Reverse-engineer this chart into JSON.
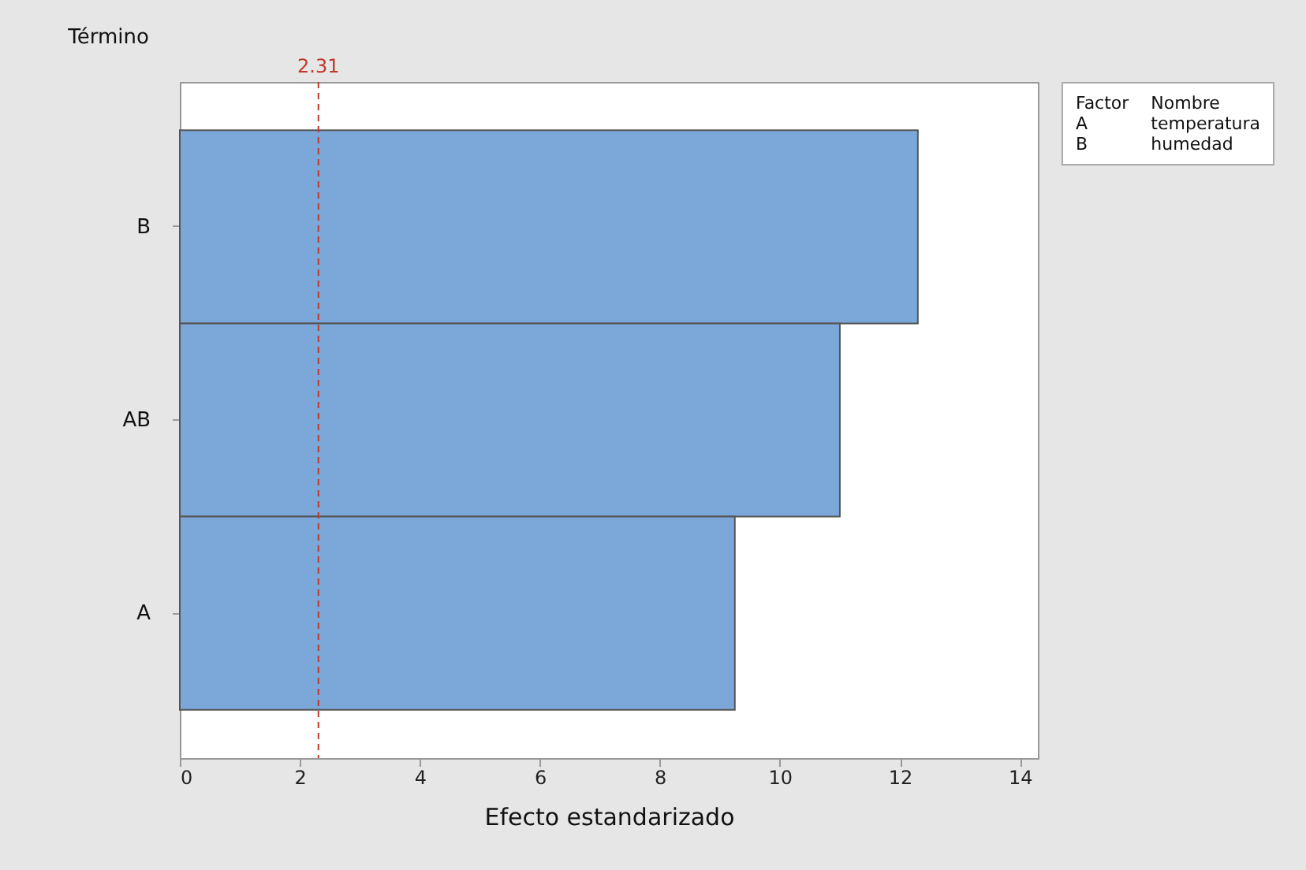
{
  "chart_data": {
    "type": "bar",
    "orientation": "horizontal",
    "xlabel": "Efecto estandarizado",
    "ylabel": "Término",
    "categories": [
      "B",
      "AB",
      "A"
    ],
    "series": [
      {
        "color": "#7ba7d9",
        "values": [
          12.3,
          11.0,
          9.25
        ]
      }
    ],
    "xlim": [
      0,
      14.3
    ],
    "xticks": [
      0,
      2,
      4,
      6,
      8,
      10,
      12,
      14
    ],
    "grid": false,
    "ref_lines": [
      {
        "axis": "x",
        "value": 2.31,
        "label": "2.31",
        "color": "#c0392b",
        "line_style": "dashed"
      }
    ],
    "annotations": [
      "Factor",
      "Nombre",
      "A",
      "temperatura",
      "B",
      "humedad"
    ]
  }
}
